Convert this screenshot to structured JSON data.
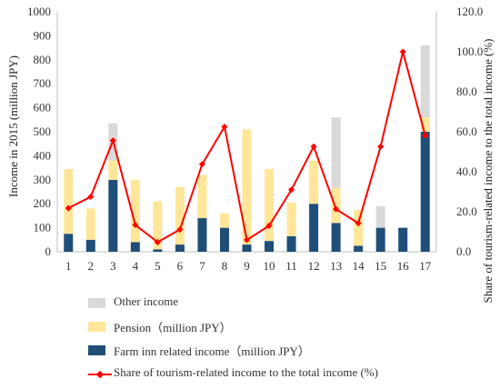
{
  "chart_data": {
    "type": "bar",
    "stacked": true,
    "categories": [
      "1",
      "2",
      "3",
      "4",
      "5",
      "6",
      "7",
      "8",
      "9",
      "10",
      "11",
      "12",
      "13",
      "14",
      "15",
      "16",
      "17"
    ],
    "series": [
      {
        "name": "Farm inn related income（million JPY）",
        "color": "#1f4e79",
        "values": [
          75,
          50,
          300,
          40,
          10,
          30,
          140,
          100,
          30,
          45,
          65,
          200,
          120,
          25,
          100,
          100,
          500
        ]
      },
      {
        "name": "Pension（million JPY）",
        "color": "#ffe699",
        "values": [
          270,
          130,
          80,
          260,
          200,
          240,
          180,
          60,
          480,
          300,
          140,
          180,
          145,
          150,
          0,
          0,
          60
        ]
      },
      {
        "name": "Other income",
        "color": "#d9d9d9",
        "values": [
          0,
          0,
          155,
          0,
          0,
          0,
          0,
          0,
          0,
          0,
          0,
          0,
          295,
          0,
          90,
          0,
          300
        ]
      }
    ],
    "line_series": {
      "name": "Share of tourism-related income to the total income (%)",
      "color": "#ff0000",
      "axis": "right",
      "values": [
        21.8,
        27.5,
        55.6,
        13.4,
        4.8,
        11.1,
        43.8,
        62.5,
        5.9,
        13.0,
        31.0,
        52.6,
        21.3,
        14.3,
        52.6,
        100.0,
        58.1
      ]
    },
    "ylabel": "Income in 2015 (million JPY)",
    "ylabel_right": "Share of tourism-related income to the total income (%)",
    "ylim": [
      0,
      1000
    ],
    "ylim_right": [
      0,
      120
    ],
    "yticks": [
      "0",
      "100",
      "200",
      "300",
      "400",
      "500",
      "600",
      "700",
      "800",
      "900",
      "1000"
    ],
    "yticks_right": [
      "0.0",
      "20.0",
      "40.0",
      "60.0",
      "80.0",
      "100.0",
      "120.0"
    ],
    "legend_position": "bottom",
    "grid": false
  },
  "legend": {
    "items": [
      {
        "label": "Other income",
        "kind": "bar",
        "color": "#d9d9d9"
      },
      {
        "label": "Pension（million JPY）",
        "kind": "bar",
        "color": "#ffe699"
      },
      {
        "label": "Farm inn related income（million JPY）",
        "kind": "bar",
        "color": "#1f4e79"
      },
      {
        "label": "Share of tourism-related income to the total income (%)",
        "kind": "line",
        "color": "#ff0000"
      }
    ]
  }
}
